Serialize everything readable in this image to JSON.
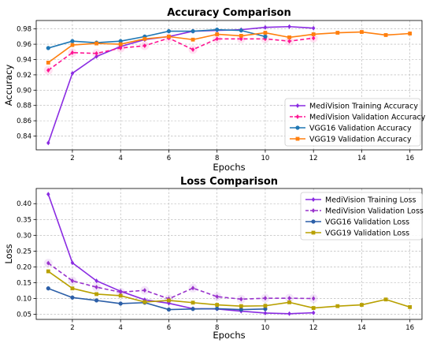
{
  "chart_data": [
    {
      "type": "line",
      "title": "Accuracy Comparison",
      "xlabel": "Epochs",
      "ylabel": "Accuracy",
      "xlim": [
        0.5,
        16.5
      ],
      "ylim": [
        0.822,
        0.991
      ],
      "xticks": [
        2,
        4,
        6,
        8,
        10,
        12,
        14,
        16
      ],
      "yticks": [
        0.84,
        0.86,
        0.88,
        0.9,
        0.92,
        0.94,
        0.96,
        0.98
      ],
      "tick_decimals": 2,
      "grid": true,
      "legend_position": "lower-right",
      "series": [
        {
          "name": "MediVision Training Accuracy",
          "color": "#8a2be2",
          "marker": "diamond",
          "dashed": false,
          "x": [
            1,
            2,
            3,
            4,
            5,
            6,
            7,
            8,
            9,
            10,
            11,
            12
          ],
          "y": [
            0.831,
            0.922,
            0.944,
            0.957,
            0.966,
            0.97,
            0.977,
            0.978,
            0.979,
            0.982,
            0.983,
            0.981
          ]
        },
        {
          "name": "MediVision Validation Accuracy",
          "color": "#ff1493",
          "marker": "diamond",
          "dashed": true,
          "x": [
            1,
            2,
            3,
            4,
            5,
            6,
            7,
            8,
            9,
            10,
            11,
            12
          ],
          "y": [
            0.926,
            0.949,
            0.948,
            0.955,
            0.958,
            0.968,
            0.953,
            0.967,
            0.967,
            0.967,
            0.964,
            0.968
          ]
        },
        {
          "name": "VGG16 Validation Accuracy",
          "color": "#1f77b4",
          "marker": "circle",
          "dashed": false,
          "x": [
            1,
            2,
            3,
            4,
            5,
            6,
            7,
            8,
            9,
            10
          ],
          "y": [
            0.955,
            0.964,
            0.962,
            0.964,
            0.97,
            0.977,
            0.977,
            0.979,
            0.978,
            0.97
          ]
        },
        {
          "name": "VGG19 Validation Accuracy",
          "color": "#ff7f0e",
          "marker": "square",
          "dashed": false,
          "x": [
            1,
            2,
            3,
            4,
            5,
            6,
            7,
            8,
            9,
            10,
            11,
            12,
            13,
            14,
            15,
            16
          ],
          "y": [
            0.936,
            0.959,
            0.961,
            0.96,
            0.967,
            0.97,
            0.966,
            0.973,
            0.971,
            0.975,
            0.969,
            0.973,
            0.975,
            0.976,
            0.972,
            0.974
          ]
        }
      ]
    },
    {
      "type": "line",
      "title": "Loss Comparison",
      "xlabel": "Epochs",
      "ylabel": "Loss",
      "xlim": [
        0.5,
        16.5
      ],
      "ylim": [
        0.034,
        0.448
      ],
      "xticks": [
        2,
        4,
        6,
        8,
        10,
        12,
        14,
        16
      ],
      "yticks": [
        0.05,
        0.1,
        0.15,
        0.2,
        0.25,
        0.3,
        0.35,
        0.4
      ],
      "tick_decimals": 2,
      "grid": true,
      "legend_position": "upper-right",
      "series": [
        {
          "name": "MediVision Training Loss",
          "color": "#8a2be2",
          "marker": "diamond",
          "dashed": false,
          "x": [
            1,
            2,
            3,
            4,
            5,
            6,
            7,
            8,
            9,
            10,
            11,
            12
          ],
          "y": [
            0.43,
            0.213,
            0.156,
            0.123,
            0.096,
            0.085,
            0.068,
            0.067,
            0.06,
            0.054,
            0.052,
            0.055
          ]
        },
        {
          "name": "MediVision Validation Loss",
          "color": "#9932cc",
          "marker": "diamond",
          "dashed": true,
          "x": [
            1,
            2,
            3,
            4,
            5,
            6,
            7,
            8,
            9,
            10,
            11,
            12
          ],
          "y": [
            0.212,
            0.156,
            0.136,
            0.12,
            0.126,
            0.099,
            0.133,
            0.106,
            0.098,
            0.101,
            0.101,
            0.1
          ]
        },
        {
          "name": "VGG16 Validation Loss",
          "color": "#2c5fa8",
          "marker": "circle",
          "dashed": false,
          "x": [
            1,
            2,
            3,
            4,
            5,
            6,
            7,
            8,
            9,
            10
          ],
          "y": [
            0.132,
            0.103,
            0.094,
            0.084,
            0.087,
            0.065,
            0.067,
            0.068,
            0.065,
            0.067
          ]
        },
        {
          "name": "VGG19 Validation Loss",
          "color": "#b8a000",
          "marker": "square",
          "dashed": false,
          "x": [
            1,
            2,
            3,
            4,
            5,
            6,
            7,
            8,
            9,
            10,
            11,
            12,
            13,
            14,
            15,
            16
          ],
          "y": [
            0.186,
            0.132,
            0.114,
            0.109,
            0.089,
            0.094,
            0.087,
            0.08,
            0.076,
            0.077,
            0.088,
            0.07,
            0.076,
            0.08,
            0.097,
            0.073
          ]
        }
      ]
    }
  ]
}
